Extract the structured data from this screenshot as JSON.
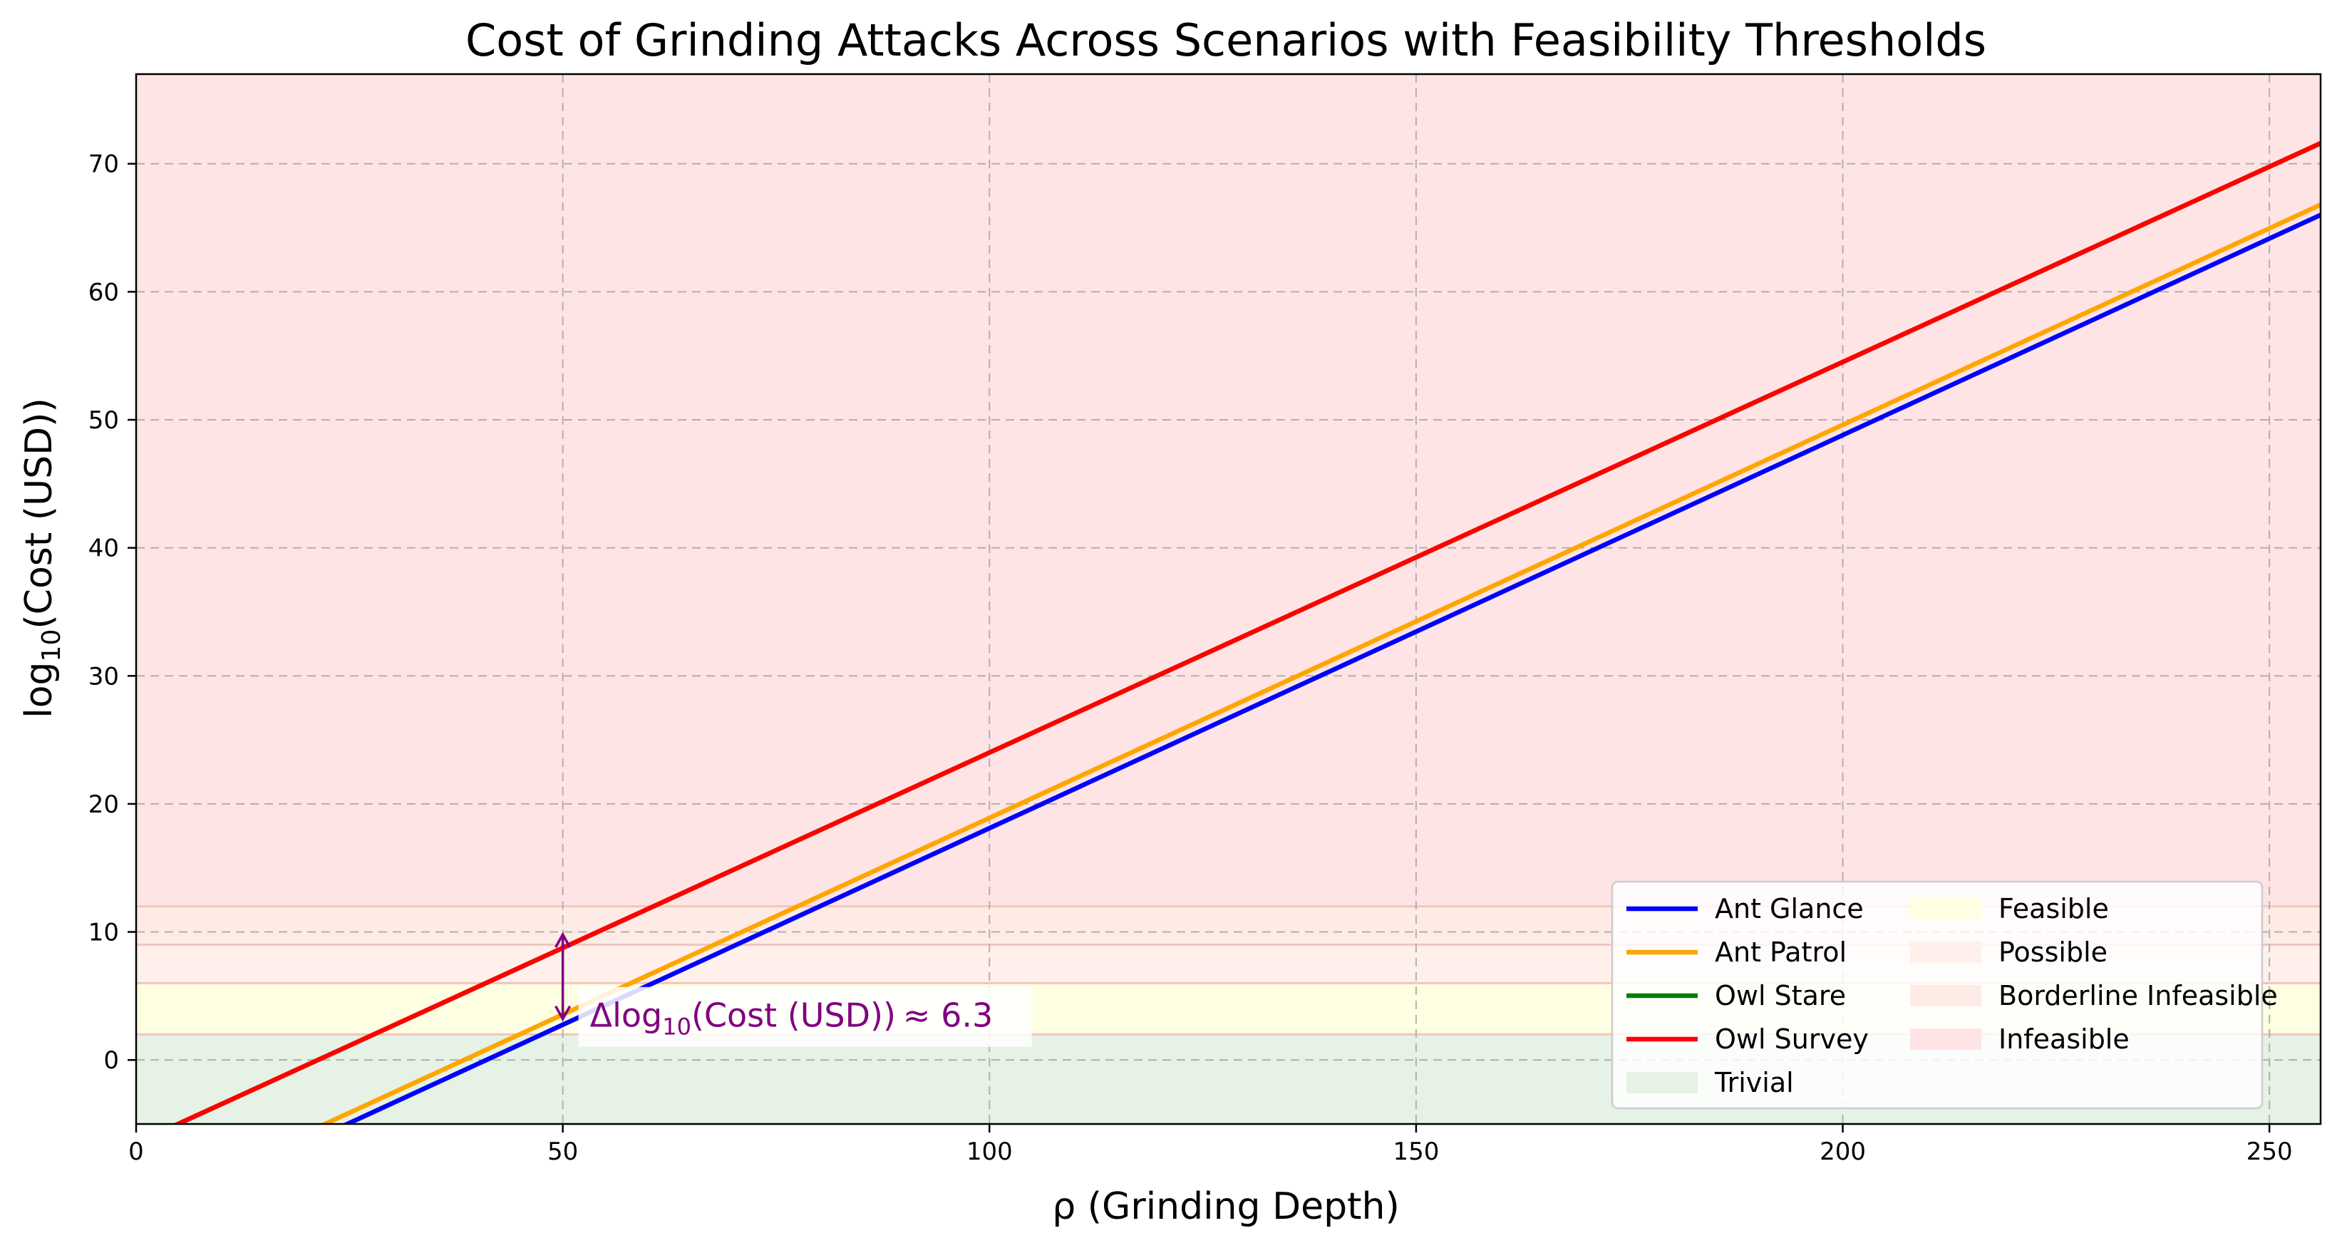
{
  "chart_data": {
    "type": "line",
    "title": "Cost of Grinding Attacks Across Scenarios with Feasibility Thresholds",
    "xlabel": "ρ (Grinding Depth)",
    "ylabel_prefix": "log",
    "ylabel_sub": "10",
    "ylabel_rest": "(Cost (USD))",
    "xlim": [
      0,
      256
    ],
    "ylim": [
      -5,
      77
    ],
    "xticks": [
      0,
      50,
      100,
      150,
      200,
      250
    ],
    "yticks": [
      0,
      10,
      20,
      30,
      40,
      50,
      60,
      70
    ],
    "grid": true,
    "legend_position": "lower-right",
    "series": [
      {
        "name": "Ant Glance",
        "color": "#0000ff",
        "x": [
          0,
          256
        ],
        "y": [
          -12.6,
          66.0
        ]
      },
      {
        "name": "Ant Patrol",
        "color": "#ffa500",
        "x": [
          0,
          256
        ],
        "y": [
          -11.8,
          66.8
        ]
      },
      {
        "name": "Owl Stare",
        "color": "#008000",
        "x": [
          0,
          256
        ],
        "y": [
          -6.5,
          71.6
        ]
      },
      {
        "name": "Owl Survey",
        "color": "#ff0000",
        "x": [
          0,
          256
        ],
        "y": [
          -6.5,
          71.6
        ]
      }
    ],
    "bands": [
      {
        "name": "Trivial",
        "from": -5,
        "to": 2,
        "color": "#e5f2e5"
      },
      {
        "name": "Feasible",
        "from": 2,
        "to": 6,
        "color": "#fefee2"
      },
      {
        "name": "Possible",
        "from": 6,
        "to": 9,
        "color": "#fff0ec"
      },
      {
        "name": "Borderline Infeasible",
        "from": 9,
        "to": 12,
        "color": "#ffebe6"
      },
      {
        "name": "Infeasible",
        "from": 12,
        "to": 77,
        "color": "#ffe4e5"
      }
    ],
    "annotation": {
      "x": 50,
      "y_top": 9.8,
      "y_bottom": 3.2,
      "text_prefix": "Δlog",
      "text_sub": "10",
      "text_rest": "(Cost (USD))",
      "text_value": "≈ 6.3",
      "color": "#800080"
    }
  }
}
